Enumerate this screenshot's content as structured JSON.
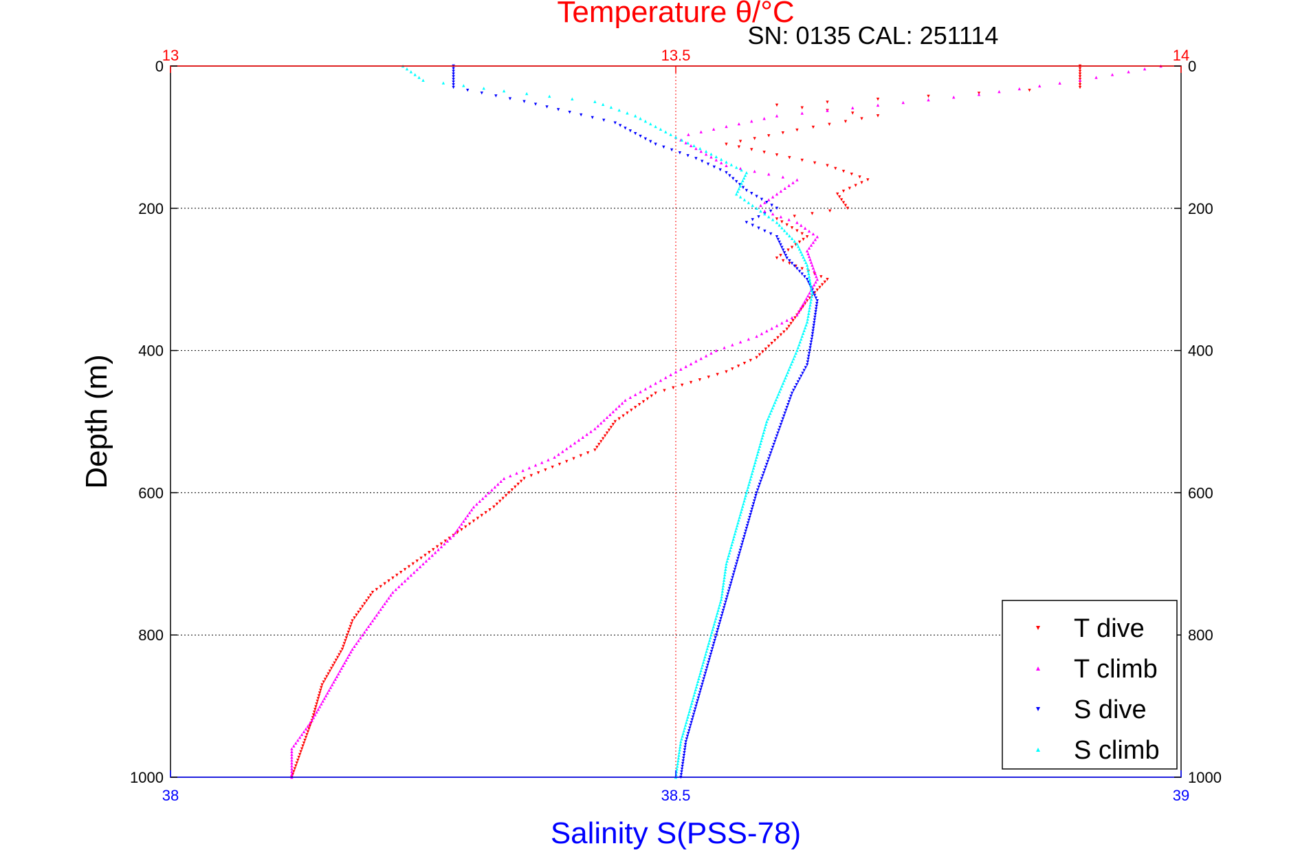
{
  "chart_data": {
    "type": "scatter",
    "title": "Temperature θ/°C",
    "subtitle": "SN: 0135   CAL: 251114",
    "ylabel": "Depth (m)",
    "xlabel_bottom": "Salinity S(PSS-78)",
    "xlabel_top": "Temperature θ/°C",
    "ylim": [
      0,
      1000
    ],
    "y_reversed": true,
    "x_bottom_lim": [
      38,
      39
    ],
    "x_top_lim": [
      13,
      14
    ],
    "y_ticks": [
      "0",
      "200",
      "400",
      "600",
      "800",
      "1000"
    ],
    "x_bottom_ticks": [
      "38",
      "38.5",
      "39"
    ],
    "x_top_ticks": [
      "13",
      "13.5",
      "14"
    ],
    "grid": true,
    "legend_position": "bottom-right",
    "colors": {
      "T_dive": "#ff0000",
      "T_climb": "#ff00ff",
      "S_dive": "#0000ff",
      "S_climb": "#00ffff",
      "top_axis": "#ff0000",
      "bottom_axis": "#0000ff"
    },
    "series": [
      {
        "name": "T dive",
        "axis": "top",
        "marker": "triangle-down",
        "points": [
          [
            13.9,
            0
          ],
          [
            13.9,
            30
          ],
          [
            13.6,
            55
          ],
          [
            13.7,
            70
          ],
          [
            13.62,
            90
          ],
          [
            13.55,
            110
          ],
          [
            13.65,
            140
          ],
          [
            13.69,
            160
          ],
          [
            13.66,
            180
          ],
          [
            13.67,
            200
          ],
          [
            13.6,
            215
          ],
          [
            13.63,
            240
          ],
          [
            13.6,
            270
          ],
          [
            13.65,
            300
          ],
          [
            13.63,
            330
          ],
          [
            13.61,
            370
          ],
          [
            13.58,
            410
          ],
          [
            13.55,
            430
          ],
          [
            13.48,
            460
          ],
          [
            13.44,
            500
          ],
          [
            13.42,
            540
          ],
          [
            13.35,
            580
          ],
          [
            13.32,
            620
          ],
          [
            13.28,
            660
          ],
          [
            13.24,
            700
          ],
          [
            13.2,
            740
          ],
          [
            13.18,
            780
          ],
          [
            13.17,
            820
          ],
          [
            13.15,
            870
          ],
          [
            13.14,
            920
          ],
          [
            13.13,
            960
          ],
          [
            13.12,
            1000
          ]
        ]
      },
      {
        "name": "T climb",
        "axis": "top",
        "marker": "triangle-up",
        "points": [
          [
            13.98,
            0
          ],
          [
            13.9,
            20
          ],
          [
            13.8,
            40
          ],
          [
            13.6,
            70
          ],
          [
            13.5,
            100
          ],
          [
            13.55,
            140
          ],
          [
            13.62,
            160
          ],
          [
            13.6,
            180
          ],
          [
            13.58,
            200
          ],
          [
            13.62,
            220
          ],
          [
            13.64,
            240
          ],
          [
            13.63,
            260
          ],
          [
            13.64,
            300
          ],
          [
            13.62,
            350
          ],
          [
            13.58,
            380
          ],
          [
            13.54,
            400
          ],
          [
            13.5,
            430
          ],
          [
            13.45,
            470
          ],
          [
            13.42,
            510
          ],
          [
            13.38,
            550
          ],
          [
            13.33,
            580
          ],
          [
            13.3,
            620
          ],
          [
            13.28,
            660
          ],
          [
            13.25,
            700
          ],
          [
            13.22,
            740
          ],
          [
            13.2,
            780
          ],
          [
            13.18,
            820
          ],
          [
            13.16,
            870
          ],
          [
            13.14,
            920
          ],
          [
            13.12,
            960
          ],
          [
            13.12,
            1000
          ]
        ]
      },
      {
        "name": "S dive",
        "axis": "bottom",
        "marker": "triangle-down",
        "points": [
          [
            38.28,
            0
          ],
          [
            38.28,
            30
          ],
          [
            38.35,
            50
          ],
          [
            38.44,
            80
          ],
          [
            38.48,
            110
          ],
          [
            38.52,
            130
          ],
          [
            38.55,
            150
          ],
          [
            38.57,
            175
          ],
          [
            38.6,
            200
          ],
          [
            38.57,
            220
          ],
          [
            38.6,
            240
          ],
          [
            38.61,
            270
          ],
          [
            38.63,
            300
          ],
          [
            38.64,
            330
          ],
          [
            38.635,
            380
          ],
          [
            38.63,
            420
          ],
          [
            38.615,
            460
          ],
          [
            38.6,
            520
          ],
          [
            38.59,
            560
          ],
          [
            38.58,
            600
          ],
          [
            38.57,
            650
          ],
          [
            38.56,
            700
          ],
          [
            38.55,
            750
          ],
          [
            38.54,
            800
          ],
          [
            38.53,
            850
          ],
          [
            38.52,
            900
          ],
          [
            38.51,
            950
          ],
          [
            38.505,
            1000
          ]
        ]
      },
      {
        "name": "S climb",
        "axis": "bottom",
        "marker": "triangle-up",
        "points": [
          [
            38.23,
            0
          ],
          [
            38.25,
            20
          ],
          [
            38.33,
            35
          ],
          [
            38.42,
            50
          ],
          [
            38.46,
            70
          ],
          [
            38.5,
            100
          ],
          [
            38.53,
            120
          ],
          [
            38.57,
            150
          ],
          [
            38.56,
            180
          ],
          [
            38.58,
            200
          ],
          [
            38.6,
            220
          ],
          [
            38.62,
            250
          ],
          [
            38.63,
            280
          ],
          [
            38.635,
            320
          ],
          [
            38.63,
            360
          ],
          [
            38.62,
            400
          ],
          [
            38.605,
            450
          ],
          [
            38.59,
            500
          ],
          [
            38.58,
            550
          ],
          [
            38.57,
            600
          ],
          [
            38.56,
            650
          ],
          [
            38.55,
            700
          ],
          [
            38.545,
            750
          ],
          [
            38.535,
            800
          ],
          [
            38.525,
            850
          ],
          [
            38.515,
            900
          ],
          [
            38.505,
            950
          ],
          [
            38.5,
            1000
          ]
        ]
      }
    ]
  }
}
